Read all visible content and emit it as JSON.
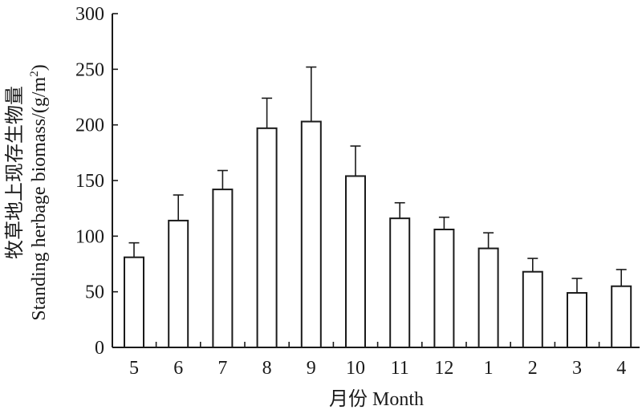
{
  "chart_data": {
    "type": "bar",
    "categories": [
      "5",
      "6",
      "7",
      "8",
      "9",
      "10",
      "11",
      "12",
      "1",
      "2",
      "3",
      "4"
    ],
    "values": [
      81,
      114,
      142,
      197,
      203,
      154,
      116,
      106,
      89,
      68,
      49,
      55
    ],
    "error_upper": [
      94,
      137,
      159,
      224,
      252,
      181,
      130,
      117,
      103,
      80,
      62,
      70
    ],
    "xlabel": "月份 Month",
    "ylabel_cn": "牧草地上现存生物量",
    "ylabel_en": "Standing herbage biomass/(g/m",
    "ylabel_sup": "2",
    "ylabel_close": ")",
    "ylim": [
      0,
      300
    ],
    "yticks": [
      0,
      50,
      100,
      150,
      200,
      250,
      300
    ],
    "grid": false,
    "bar_fill": "#ffffff",
    "bar_stroke": "#1a1a1a"
  }
}
